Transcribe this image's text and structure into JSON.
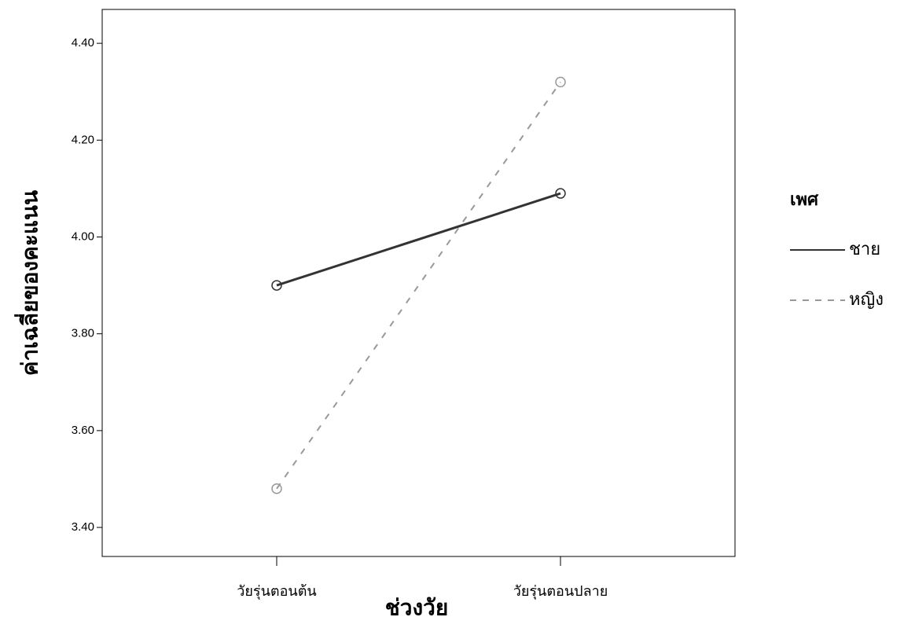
{
  "chart_data": {
    "type": "line",
    "x_label": "ช่วงวัย",
    "y_label": "ค่าเฉลี่ยของคะแนน",
    "legend_title": "เพศ",
    "legend": "right",
    "categories": [
      "วัยรุ่นตอนต้น",
      "วัยรุ่นตอนปลาย"
    ],
    "series": [
      {
        "name": "ชาย",
        "color": "#333333",
        "dash": false,
        "values": [
          3.9,
          4.09
        ]
      },
      {
        "name": "หญิง",
        "color": "#999999",
        "dash": true,
        "values": [
          3.48,
          4.32
        ]
      }
    ],
    "ylim": [
      3.34,
      4.47
    ],
    "yticks": [
      {
        "value": 3.4,
        "label": "3.40"
      },
      {
        "value": 3.6,
        "label": "3.60"
      },
      {
        "value": 3.8,
        "label": "3.80"
      },
      {
        "value": 4.0,
        "label": "4.00"
      },
      {
        "value": 4.2,
        "label": "4.20"
      },
      {
        "value": 4.4,
        "label": "4.40"
      }
    ],
    "grid": false
  }
}
